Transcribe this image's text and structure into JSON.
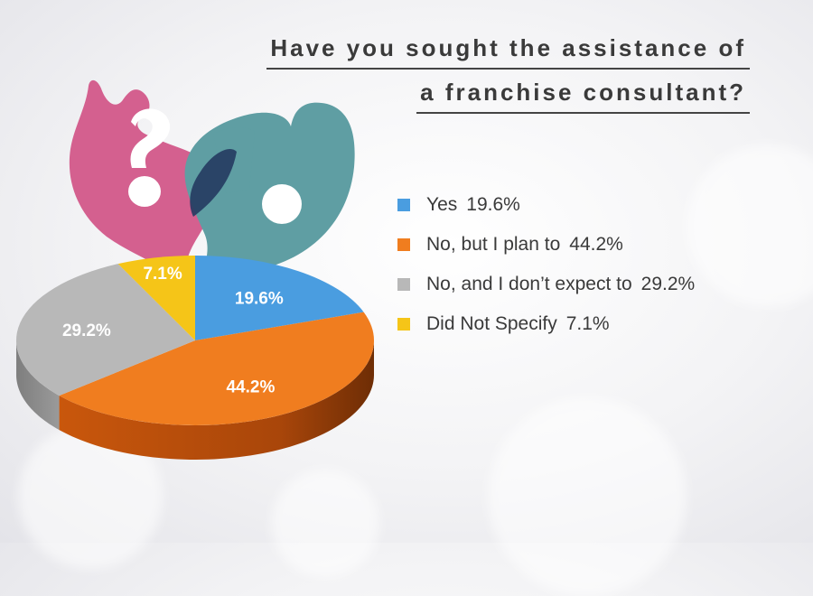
{
  "chart_data": {
    "type": "pie",
    "title_lines": [
      "Have you sought the assistance of",
      "a franchise consultant?"
    ],
    "slices": [
      {
        "label": "Yes",
        "value": 19.6,
        "display": "19.6%",
        "color": "#4a9de0"
      },
      {
        "label": "No, but I plan to",
        "value": 44.2,
        "display": "44.2%",
        "color": "#f07d1f"
      },
      {
        "label": "No, and I don’t expect to",
        "value": 29.2,
        "display": "29.2%",
        "color": "#b8b8b8"
      },
      {
        "label": "Did Not Specify",
        "value": 7.1,
        "display": "7.1%",
        "color": "#f5c518"
      }
    ],
    "legend_position": "right",
    "style": "3d"
  },
  "decor": {
    "left_bubble_icon": "question-mark-bubble-icon",
    "right_bubble_icon": "exclamation-bubble-icon",
    "left_bubble_color": "#d4608f",
    "right_bubble_color": "#5f9ea3"
  }
}
